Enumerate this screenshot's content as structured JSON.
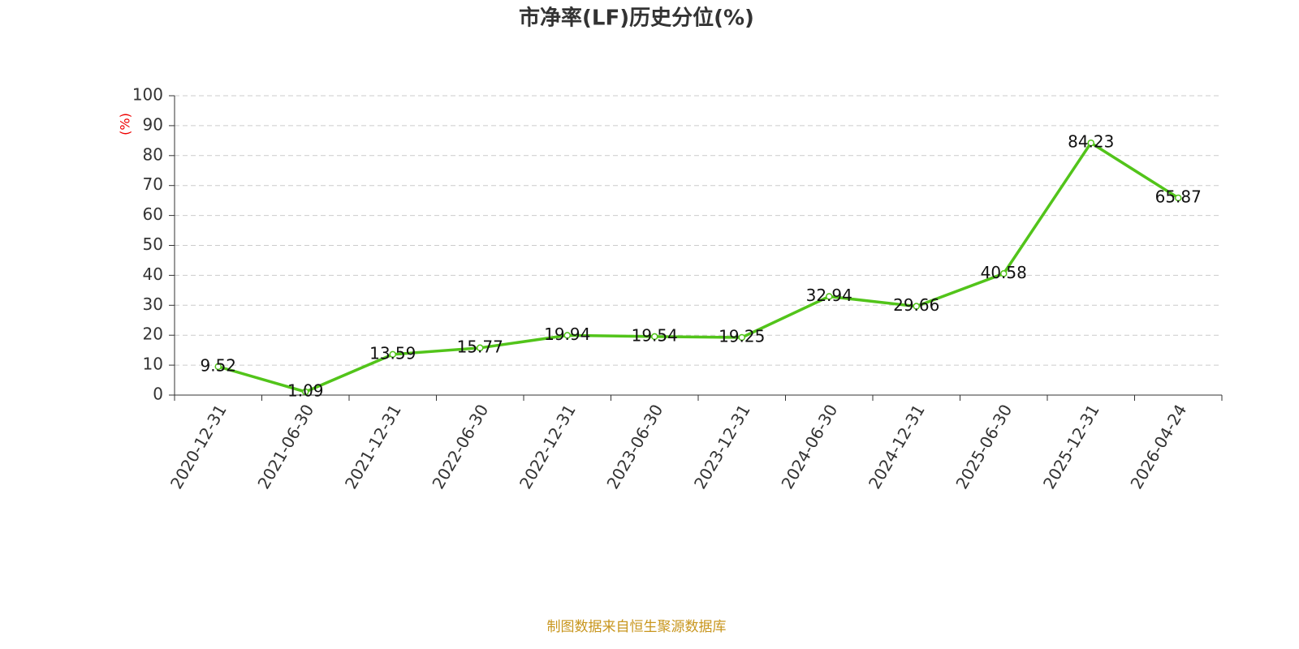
{
  "chart_data": {
    "type": "line",
    "title": "市净率(LF)历史分位(%)",
    "ylabel": "(%)",
    "categories": [
      "2020-12-31",
      "2021-06-30",
      "2021-12-31",
      "2022-06-30",
      "2022-12-31",
      "2023-06-30",
      "2023-12-31",
      "2024-06-30",
      "2024-12-31",
      "2025-06-30",
      "2025-12-31",
      "2026-04-24"
    ],
    "values": [
      9.52,
      1.09,
      13.59,
      15.77,
      19.94,
      19.54,
      19.25,
      32.94,
      29.66,
      40.58,
      84.23,
      65.87
    ],
    "color": "#52c41a",
    "ylim": [
      0,
      100
    ],
    "yticks": [
      0,
      10,
      20,
      30,
      40,
      50,
      60,
      70,
      80,
      90,
      100
    ],
    "grid": true,
    "source": "制图数据来自恒生聚源数据库"
  }
}
